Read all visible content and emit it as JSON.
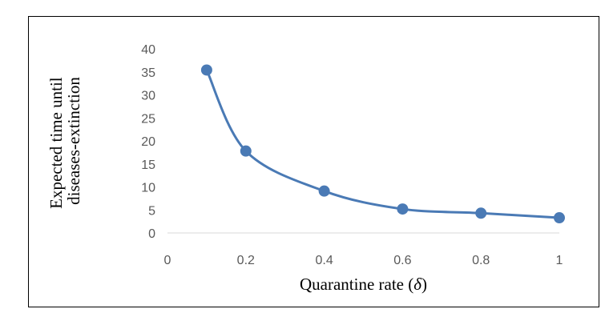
{
  "chart_data": {
    "type": "line",
    "title": "",
    "xlabel": "Quarantine rate (δ)",
    "xlabel_text": "Quarantine rate (",
    "xlabel_symbol": "δ",
    "xlabel_close": ")",
    "ylabel": [
      "Expected time until",
      "diseases-extinction"
    ],
    "xlim": [
      0,
      1
    ],
    "ylim": [
      0,
      40
    ],
    "xticks": [
      0,
      0.2,
      0.4,
      0.6,
      0.8,
      1
    ],
    "xtick_labels": [
      "0",
      "0.2",
      "0.4",
      "0.6",
      "0.8",
      "1"
    ],
    "yticks": [
      0,
      5,
      10,
      15,
      20,
      25,
      30,
      35,
      40
    ],
    "ytick_labels": [
      "0",
      "5",
      "10",
      "15",
      "20",
      "25",
      "30",
      "35",
      "40"
    ],
    "grid": false,
    "smooth": true,
    "series": [
      {
        "color": "#4a7ab5",
        "x": [
          0.1,
          0.2,
          0.4,
          0.6,
          0.8,
          1
        ],
        "y": [
          35.4,
          17.8,
          9.1,
          5.2,
          4.3,
          3.3
        ]
      }
    ]
  }
}
